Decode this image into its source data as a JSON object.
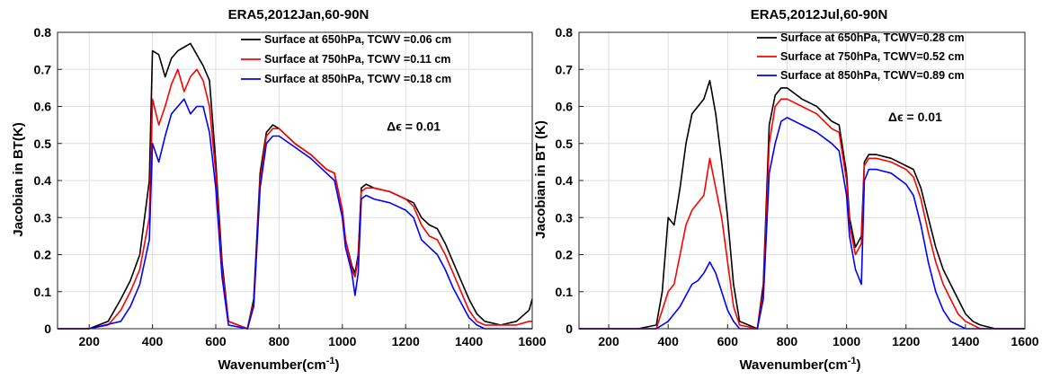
{
  "chart_data": [
    {
      "type": "line",
      "title": "ERA5,2012Jan,60-90N",
      "xlabel": "Wavenumber(cm",
      "xlabel_sup": "-1",
      "xlabel_close": ")",
      "ylabel": "Jacobian in BT(K)",
      "xlim": [
        100,
        1600
      ],
      "ylim": [
        0,
        0.8
      ],
      "xticks": [
        200,
        400,
        600,
        800,
        1000,
        1200,
        1400,
        1600
      ],
      "yticks": [
        0,
        0.1,
        0.2,
        0.3,
        0.4,
        0.5,
        0.6,
        0.7,
        0.8
      ],
      "grid": true,
      "legend_position": "top-right",
      "annotation": "Δϵ = 0.01",
      "annotation_pos": [
        1140,
        0.535
      ],
      "series": [
        {
          "name": "Surface at 650hPa, TCWV =0.06 cm",
          "color": "#000000",
          "x": [
            100,
            200,
            230,
            260,
            300,
            330,
            360,
            390,
            400,
            420,
            440,
            460,
            480,
            500,
            520,
            540,
            560,
            580,
            600,
            620,
            640,
            700,
            720,
            740,
            760,
            780,
            800,
            850,
            900,
            950,
            975,
            1000,
            1010,
            1030,
            1040,
            1050,
            1060,
            1075,
            1100,
            1150,
            1200,
            1225,
            1250,
            1275,
            1300,
            1325,
            1350,
            1375,
            1400,
            1425,
            1450,
            1500,
            1550,
            1590,
            1600
          ],
          "y": [
            0,
            0,
            0.01,
            0.02,
            0.08,
            0.13,
            0.2,
            0.4,
            0.75,
            0.74,
            0.68,
            0.73,
            0.75,
            0.76,
            0.77,
            0.74,
            0.71,
            0.67,
            0.45,
            0.18,
            0.02,
            0,
            0.08,
            0.42,
            0.53,
            0.55,
            0.54,
            0.5,
            0.47,
            0.43,
            0.42,
            0.32,
            0.24,
            0.17,
            0.15,
            0.2,
            0.38,
            0.39,
            0.38,
            0.37,
            0.35,
            0.34,
            0.3,
            0.28,
            0.27,
            0.23,
            0.18,
            0.13,
            0.08,
            0.04,
            0.02,
            0.01,
            0.02,
            0.05,
            0.08
          ]
        },
        {
          "name": "Surface at 750hPa, TCWV =0.11 cm",
          "color": "#ff0000",
          "x": [
            100,
            200,
            260,
            300,
            330,
            360,
            390,
            400,
            420,
            440,
            460,
            480,
            500,
            520,
            540,
            560,
            580,
            600,
            620,
            640,
            700,
            720,
            740,
            760,
            780,
            800,
            850,
            900,
            950,
            975,
            1000,
            1010,
            1030,
            1040,
            1050,
            1060,
            1075,
            1100,
            1150,
            1200,
            1225,
            1250,
            1275,
            1300,
            1325,
            1350,
            1375,
            1400,
            1425,
            1450,
            1500,
            1550,
            1590,
            1600
          ],
          "y": [
            0,
            0,
            0.01,
            0.05,
            0.1,
            0.16,
            0.3,
            0.62,
            0.55,
            0.6,
            0.66,
            0.7,
            0.64,
            0.68,
            0.7,
            0.67,
            0.6,
            0.42,
            0.16,
            0.02,
            0,
            0.07,
            0.4,
            0.52,
            0.54,
            0.54,
            0.5,
            0.47,
            0.43,
            0.42,
            0.32,
            0.24,
            0.16,
            0.14,
            0.19,
            0.37,
            0.38,
            0.38,
            0.37,
            0.35,
            0.33,
            0.28,
            0.25,
            0.24,
            0.2,
            0.15,
            0.1,
            0.05,
            0.02,
            0.01,
            0.01,
            0.01,
            0.02,
            0.02
          ]
        },
        {
          "name": "Surface at 850hPa, TCWV =0.18 cm",
          "color": "#0000ff",
          "x": [
            100,
            200,
            300,
            330,
            360,
            390,
            400,
            420,
            440,
            460,
            480,
            500,
            520,
            540,
            560,
            580,
            600,
            620,
            640,
            700,
            720,
            740,
            760,
            780,
            800,
            850,
            900,
            950,
            975,
            1000,
            1010,
            1030,
            1040,
            1050,
            1060,
            1075,
            1100,
            1150,
            1200,
            1225,
            1250,
            1275,
            1300,
            1325,
            1350,
            1375,
            1400,
            1425,
            1450,
            1500,
            1550,
            1600
          ],
          "y": [
            0,
            0,
            0.02,
            0.06,
            0.12,
            0.24,
            0.5,
            0.45,
            0.52,
            0.58,
            0.6,
            0.62,
            0.58,
            0.6,
            0.6,
            0.53,
            0.38,
            0.14,
            0.01,
            0,
            0.06,
            0.38,
            0.5,
            0.52,
            0.52,
            0.49,
            0.46,
            0.42,
            0.4,
            0.3,
            0.22,
            0.15,
            0.09,
            0.15,
            0.35,
            0.36,
            0.35,
            0.34,
            0.32,
            0.3,
            0.24,
            0.22,
            0.2,
            0.16,
            0.11,
            0.07,
            0.03,
            0.01,
            0,
            0,
            0,
            0
          ]
        }
      ]
    },
    {
      "type": "line",
      "title": "ERA5,2012Jul,60-90N",
      "xlabel": "Wavenumber(cm",
      "xlabel_sup": "-1",
      "xlabel_close": ")",
      "ylabel": "Jacobian in BT (K)",
      "xlim": [
        100,
        1600
      ],
      "ylim": [
        0,
        0.8
      ],
      "xticks": [
        200,
        400,
        600,
        800,
        1000,
        1200,
        1400,
        1600
      ],
      "yticks": [
        0,
        0.1,
        0.2,
        0.3,
        0.4,
        0.5,
        0.6,
        0.7,
        0.8
      ],
      "grid": true,
      "legend_position": "top-right",
      "annotation": "Δϵ = 0.01",
      "annotation_pos": [
        1140,
        0.56
      ],
      "series": [
        {
          "name": "Surface at 650hPa, TCWV=0.28 cm",
          "color": "#000000",
          "x": [
            100,
            300,
            360,
            380,
            400,
            420,
            440,
            460,
            480,
            500,
            520,
            540,
            560,
            580,
            600,
            620,
            640,
            700,
            720,
            740,
            760,
            780,
            800,
            850,
            900,
            950,
            975,
            1000,
            1010,
            1030,
            1050,
            1060,
            1075,
            1100,
            1150,
            1200,
            1225,
            1250,
            1275,
            1300,
            1325,
            1350,
            1375,
            1400,
            1425,
            1450,
            1500,
            1600
          ],
          "y": [
            0,
            0,
            0.01,
            0.1,
            0.3,
            0.28,
            0.38,
            0.5,
            0.58,
            0.6,
            0.62,
            0.67,
            0.58,
            0.45,
            0.3,
            0.12,
            0.02,
            0,
            0.12,
            0.55,
            0.63,
            0.65,
            0.65,
            0.62,
            0.6,
            0.56,
            0.55,
            0.42,
            0.3,
            0.22,
            0.25,
            0.45,
            0.47,
            0.47,
            0.46,
            0.44,
            0.43,
            0.38,
            0.3,
            0.22,
            0.16,
            0.12,
            0.08,
            0.04,
            0.02,
            0.01,
            0,
            0
          ]
        },
        {
          "name": "Surface at 750hPa, TCWV=0.52 cm",
          "color": "#ff0000",
          "x": [
            100,
            360,
            400,
            420,
            440,
            460,
            480,
            500,
            520,
            540,
            560,
            580,
            600,
            620,
            640,
            700,
            720,
            740,
            760,
            780,
            800,
            850,
            900,
            950,
            975,
            1000,
            1010,
            1030,
            1050,
            1060,
            1075,
            1100,
            1150,
            1200,
            1225,
            1250,
            1275,
            1300,
            1325,
            1350,
            1375,
            1400,
            1450,
            1600
          ],
          "y": [
            0,
            0,
            0.1,
            0.12,
            0.2,
            0.28,
            0.32,
            0.34,
            0.36,
            0.46,
            0.38,
            0.3,
            0.18,
            0.06,
            0.01,
            0,
            0.1,
            0.5,
            0.6,
            0.62,
            0.62,
            0.6,
            0.58,
            0.54,
            0.53,
            0.4,
            0.28,
            0.2,
            0.23,
            0.44,
            0.46,
            0.46,
            0.45,
            0.43,
            0.41,
            0.35,
            0.26,
            0.18,
            0.12,
            0.08,
            0.04,
            0.02,
            0,
            0
          ]
        },
        {
          "name": "Surface at 850hPa, TCWV=0.89 cm",
          "color": "#0000ff",
          "x": [
            100,
            360,
            400,
            420,
            440,
            460,
            480,
            500,
            520,
            540,
            560,
            580,
            600,
            620,
            640,
            700,
            720,
            740,
            760,
            780,
            800,
            850,
            900,
            950,
            975,
            1000,
            1010,
            1030,
            1050,
            1060,
            1075,
            1100,
            1150,
            1200,
            1225,
            1250,
            1275,
            1300,
            1325,
            1350,
            1375,
            1400,
            1600
          ],
          "y": [
            0,
            0,
            0.02,
            0.04,
            0.06,
            0.09,
            0.12,
            0.13,
            0.15,
            0.18,
            0.15,
            0.1,
            0.05,
            0.02,
            0,
            0,
            0.08,
            0.42,
            0.5,
            0.56,
            0.57,
            0.55,
            0.53,
            0.5,
            0.48,
            0.36,
            0.25,
            0.16,
            0.12,
            0.4,
            0.43,
            0.43,
            0.42,
            0.39,
            0.36,
            0.28,
            0.18,
            0.1,
            0.05,
            0.02,
            0.01,
            0,
            0
          ]
        }
      ]
    }
  ]
}
